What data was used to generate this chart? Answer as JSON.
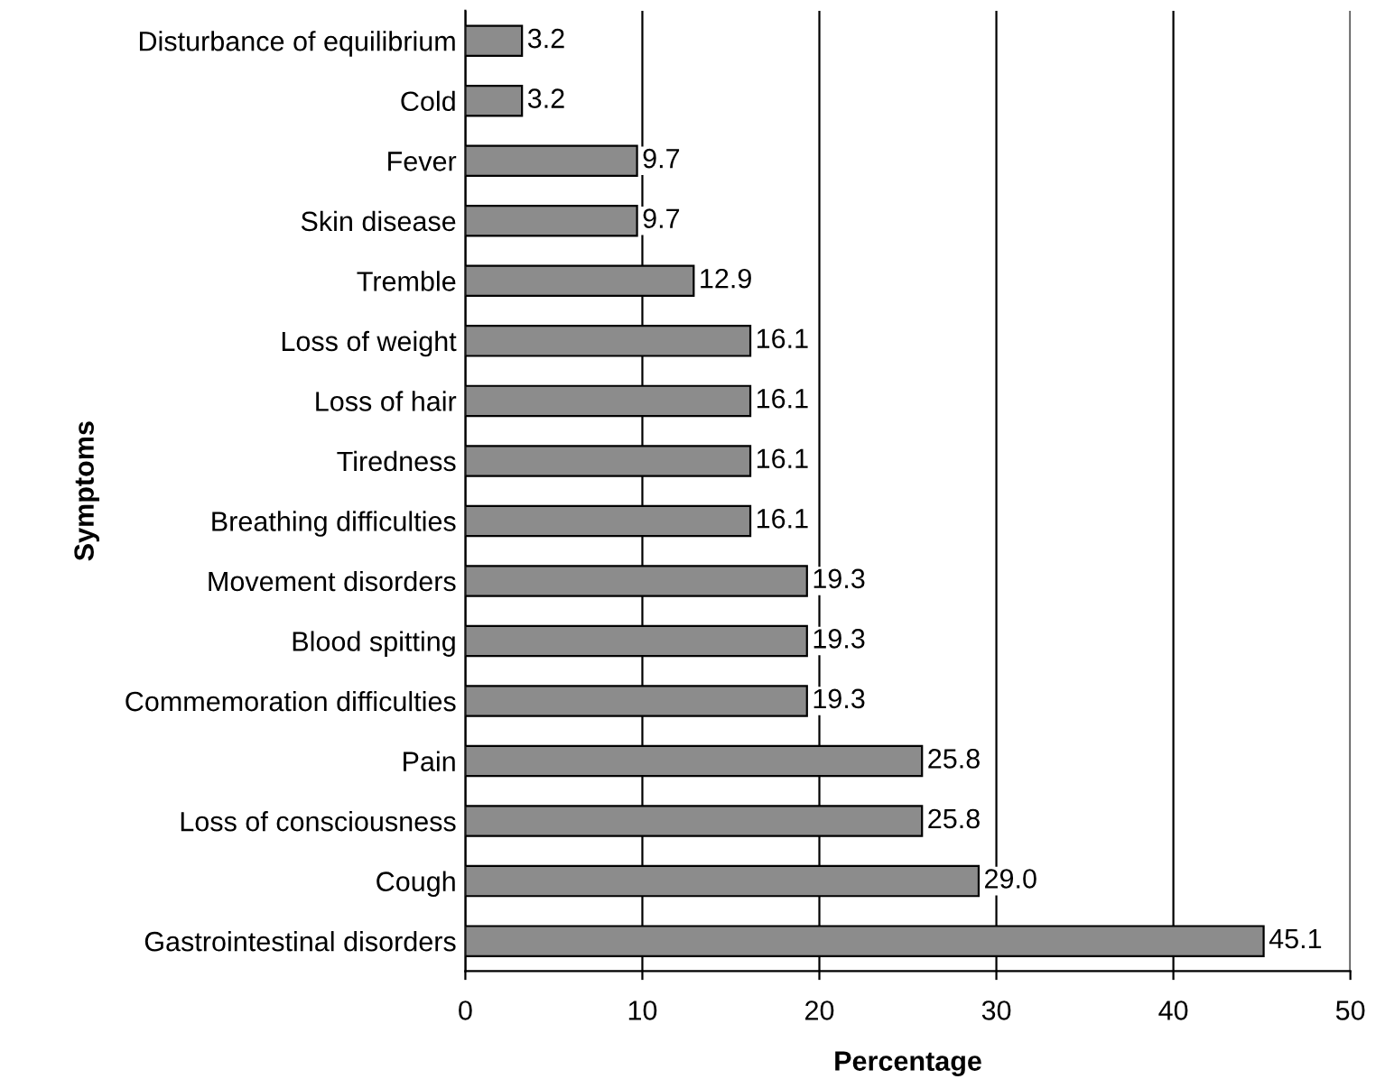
{
  "chart_data": {
    "type": "bar",
    "orientation": "horizontal",
    "xlabel": "Percentage",
    "ylabel": "Symptoms",
    "categories": [
      "Disturbance of equilibrium",
      "Cold",
      "Fever",
      "Skin disease",
      "Tremble",
      "Loss of weight",
      "Loss of hair",
      "Tiredness",
      "Breathing difficulties",
      "Movement disorders",
      "Blood spitting",
      "Commemoration difficulties",
      "Pain",
      "Loss of consciousness",
      "Cough",
      "Gastrointestinal disorders"
    ],
    "values": [
      3.2,
      3.2,
      9.7,
      9.7,
      12.9,
      16.1,
      16.1,
      16.1,
      16.1,
      19.3,
      19.3,
      19.3,
      25.8,
      25.8,
      29.0,
      45.1
    ],
    "value_labels": [
      "3.2",
      "3.2",
      "9.7",
      "9.7",
      "12.9",
      "16.1",
      "16.1",
      "16.1",
      "16.1",
      "19.3",
      "19.3",
      "19.3",
      "25.8",
      "25.8",
      "29.0",
      "45.1"
    ],
    "color": "#8c8c8c",
    "xlim": [
      0,
      50
    ],
    "xticks": [
      0,
      10,
      20,
      30,
      40,
      50
    ],
    "grid": "x"
  }
}
